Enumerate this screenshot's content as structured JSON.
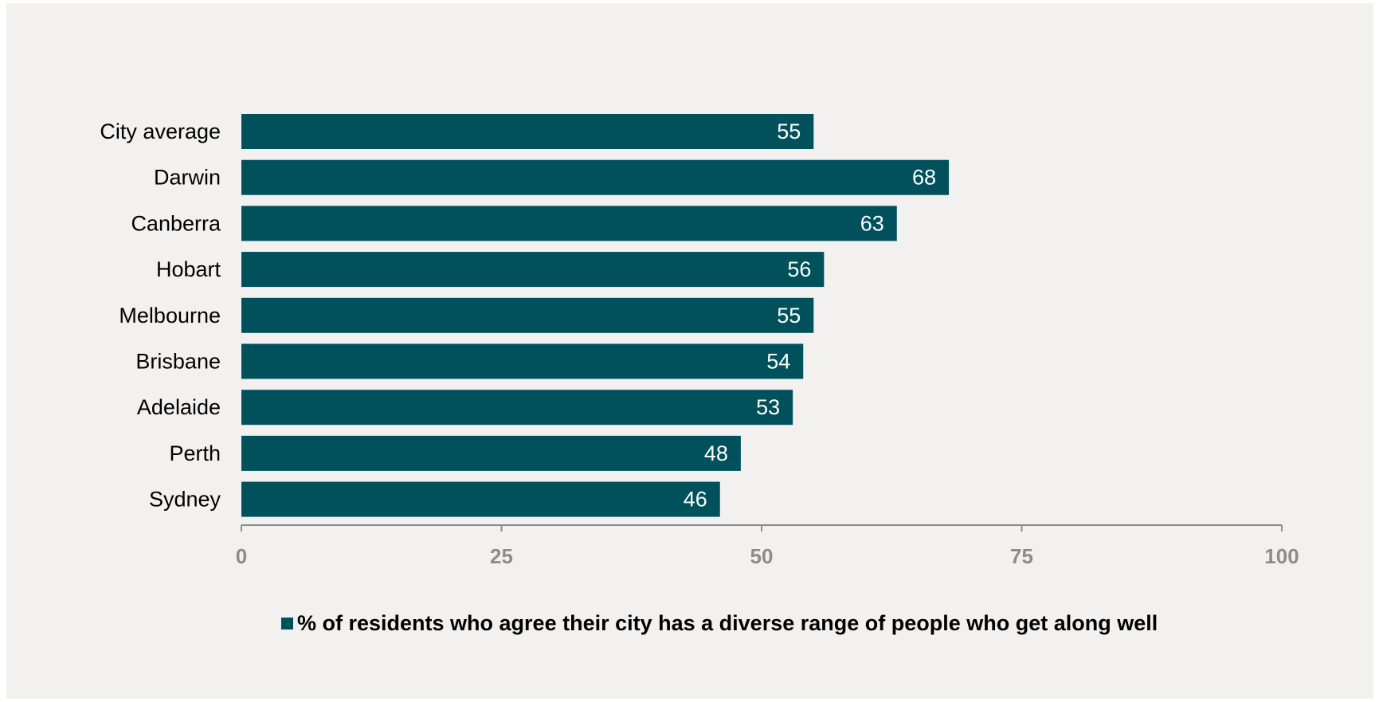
{
  "colors": {
    "bar": "#00515c",
    "axis": "#8c8c8c",
    "background": "#f2f1f0"
  },
  "chart_data": {
    "type": "bar",
    "orientation": "horizontal",
    "categories": [
      "City average",
      "Darwin",
      "Canberra",
      "Hobart",
      "Melbourne",
      "Brisbane",
      "Adelaide",
      "Perth",
      "Sydney"
    ],
    "series": [
      {
        "name": "% of residents who agree their city has a diverse range of people who get along well",
        "values": [
          55,
          68,
          63,
          56,
          55,
          54,
          53,
          48,
          46
        ]
      }
    ],
    "xlim": [
      0,
      100
    ],
    "xticks": [
      "0",
      "25",
      "50",
      "75",
      "100"
    ],
    "data_labels": true,
    "grid": false,
    "legend_position": "bottom"
  }
}
